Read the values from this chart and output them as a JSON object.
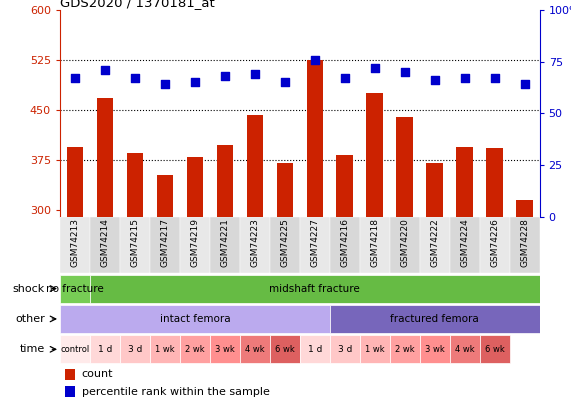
{
  "title": "GDS2020 / 1370181_at",
  "samples": [
    "GSM74213",
    "GSM74214",
    "GSM74215",
    "GSM74217",
    "GSM74219",
    "GSM74221",
    "GSM74223",
    "GSM74225",
    "GSM74227",
    "GSM74216",
    "GSM74218",
    "GSM74220",
    "GSM74222",
    "GSM74224",
    "GSM74226",
    "GSM74228"
  ],
  "counts": [
    395,
    468,
    385,
    352,
    380,
    398,
    442,
    370,
    525,
    382,
    476,
    440,
    370,
    395,
    393,
    315
  ],
  "percentile_ranks": [
    67,
    71,
    67,
    64,
    65,
    68,
    69,
    65,
    76,
    67,
    72,
    70,
    66,
    67,
    67,
    64
  ],
  "ylim_left": [
    290,
    600
  ],
  "ylim_right": [
    0,
    100
  ],
  "yticks_left": [
    300,
    375,
    450,
    525,
    600
  ],
  "yticks_right": [
    0,
    25,
    50,
    75,
    100
  ],
  "bar_color": "#CC2200",
  "dot_color": "#0000CC",
  "shock_groups": [
    {
      "text": "no fracture",
      "start": 0,
      "end": 1,
      "color": "#77CC55"
    },
    {
      "text": "midshaft fracture",
      "start": 1,
      "end": 16,
      "color": "#66BB44"
    }
  ],
  "other_groups": [
    {
      "text": "intact femora",
      "start": 0,
      "end": 9,
      "color": "#BBAAEE"
    },
    {
      "text": "fractured femora",
      "start": 9,
      "end": 16,
      "color": "#7766BB"
    }
  ],
  "time_cells": [
    {
      "text": "control",
      "start": 0,
      "end": 1,
      "color": "#FFEAEA"
    },
    {
      "text": "1 d",
      "start": 1,
      "end": 2,
      "color": "#FFD8D8"
    },
    {
      "text": "3 d",
      "start": 2,
      "end": 3,
      "color": "#FFC8C8"
    },
    {
      "text": "1 wk",
      "start": 3,
      "end": 4,
      "color": "#FFB5B5"
    },
    {
      "text": "2 wk",
      "start": 4,
      "end": 5,
      "color": "#FFA0A0"
    },
    {
      "text": "3 wk",
      "start": 5,
      "end": 6,
      "color": "#FF8F8F"
    },
    {
      "text": "4 wk",
      "start": 6,
      "end": 7,
      "color": "#EE7A7A"
    },
    {
      "text": "6 wk",
      "start": 7,
      "end": 8,
      "color": "#DD6060"
    },
    {
      "text": "1 d",
      "start": 8,
      "end": 9,
      "color": "#FFD8D8"
    },
    {
      "text": "3 d",
      "start": 9,
      "end": 10,
      "color": "#FFC8C8"
    },
    {
      "text": "1 wk",
      "start": 10,
      "end": 11,
      "color": "#FFB5B5"
    },
    {
      "text": "2 wk",
      "start": 11,
      "end": 12,
      "color": "#FFA0A0"
    },
    {
      "text": "3 wk",
      "start": 12,
      "end": 13,
      "color": "#FF8F8F"
    },
    {
      "text": "4 wk",
      "start": 13,
      "end": 14,
      "color": "#EE7A7A"
    },
    {
      "text": "6 wk",
      "start": 14,
      "end": 15,
      "color": "#DD6060"
    }
  ],
  "row_labels": [
    "shock",
    "other",
    "time"
  ],
  "legend_items": [
    {
      "text": "count",
      "color": "#CC2200"
    },
    {
      "text": "percentile rank within the sample",
      "color": "#0000CC"
    }
  ]
}
